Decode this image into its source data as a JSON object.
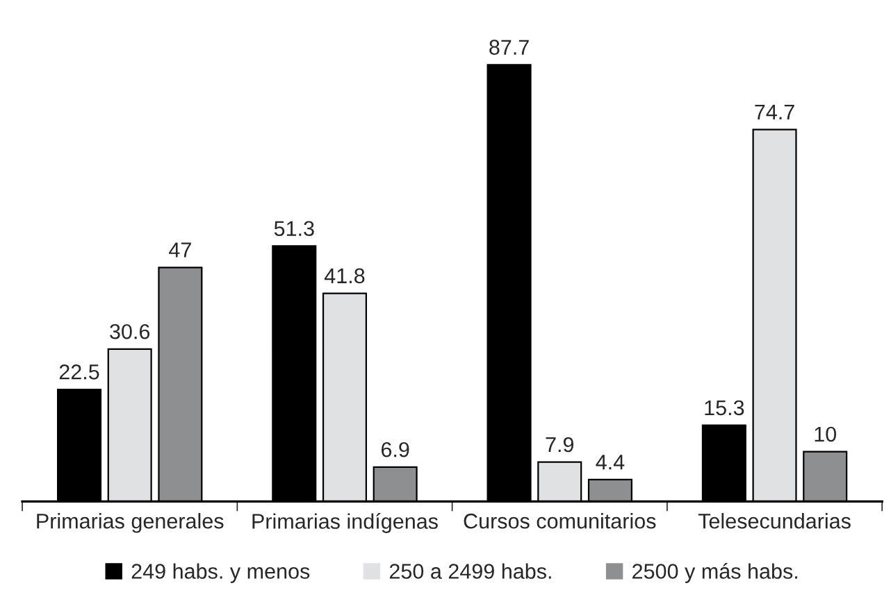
{
  "chart_data": {
    "type": "bar",
    "categories": [
      "Primarias generales",
      "Primarias indígenas",
      "Cursos comunitarios",
      "Telesecundarias"
    ],
    "series": [
      {
        "name": "249 habs. y menos",
        "color": "#000000",
        "values": [
          22.5,
          51.3,
          87.7,
          15.3
        ]
      },
      {
        "name": "250 a 2499 habs.",
        "color": "#e0e1e2",
        "values": [
          30.6,
          41.8,
          7.9,
          74.7
        ]
      },
      {
        "name": "2500 y más habs.",
        "color": "#8e8f90",
        "values": [
          47,
          6.9,
          4.4,
          10
        ]
      }
    ],
    "data_labels": true,
    "legend": "bottom",
    "grid": false
  }
}
